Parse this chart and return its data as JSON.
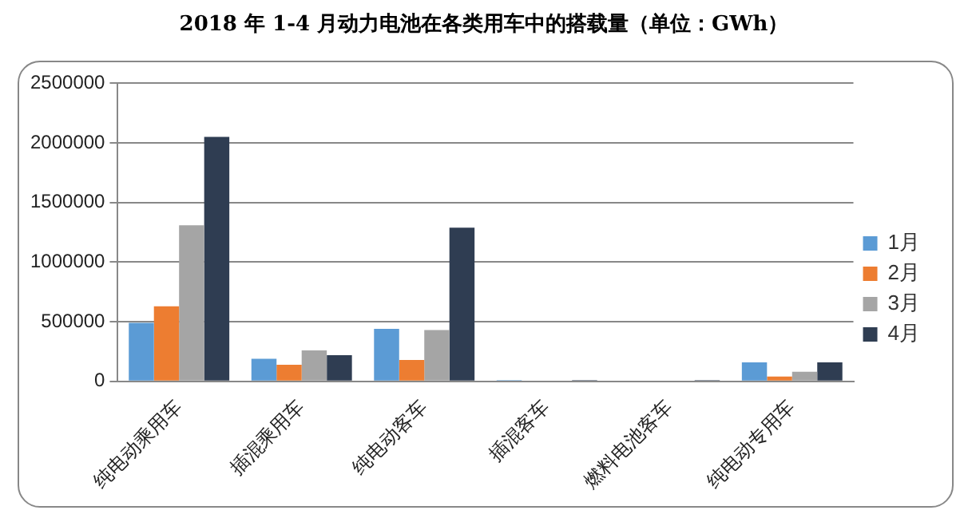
{
  "chart_data": {
    "type": "bar",
    "title": "2018 年 1-4 月动力电池在各类用车中的搭载量（单位：GWh）",
    "categories": [
      "纯电动乘用车",
      "插混乘用车",
      "纯电动客车",
      "插混客车",
      "燃料电池客车",
      "纯电动专用车"
    ],
    "series": [
      {
        "name": "1月",
        "color": "#5b9bd5",
        "values": [
          490000,
          190000,
          440000,
          10000,
          0,
          160000
        ]
      },
      {
        "name": "2月",
        "color": "#ed7d31",
        "values": [
          630000,
          140000,
          180000,
          0,
          0,
          40000
        ]
      },
      {
        "name": "3月",
        "color": "#a5a5a5",
        "values": [
          1310000,
          260000,
          430000,
          0,
          0,
          80000
        ]
      },
      {
        "name": "4月",
        "color": "#2f3d52",
        "values": [
          2050000,
          220000,
          1290000,
          10000,
          10000,
          160000
        ]
      }
    ],
    "ylim": [
      0,
      2500000
    ],
    "yticks": [
      0,
      500000,
      1000000,
      1500000,
      2000000,
      2500000
    ],
    "grid": "y",
    "legend": "right"
  }
}
